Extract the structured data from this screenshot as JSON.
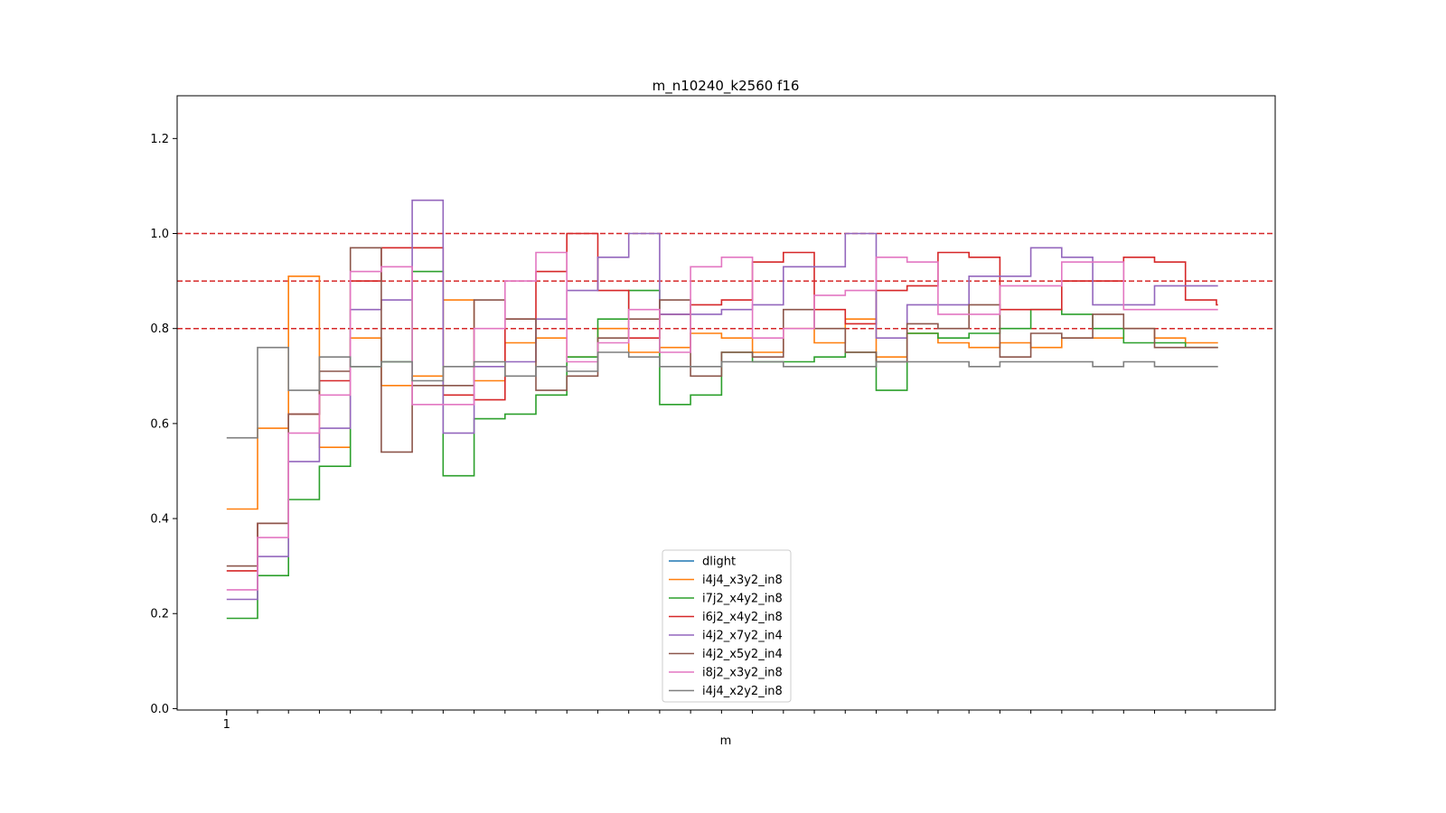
{
  "chart_data": {
    "type": "line",
    "title": "m_n10240_k2560 f16",
    "xlabel": "m",
    "ylabel": "",
    "ylim": [
      -0.003,
      1.29
    ],
    "xlim": [
      -15,
      340
    ],
    "x_tick_labels": [
      {
        "x": 1,
        "label": "1"
      }
    ],
    "x_minor_ticks": [
      1,
      11,
      21,
      31,
      41,
      51,
      61,
      71,
      81,
      91,
      101,
      111,
      121,
      131,
      141,
      151,
      161,
      171,
      181,
      191,
      201,
      211,
      221,
      231,
      241,
      251,
      261,
      271,
      281,
      291,
      301,
      311,
      321
    ],
    "y_ticks": [
      0.0,
      0.2,
      0.4,
      0.6,
      0.8,
      1.0,
      1.2
    ],
    "y_tick_labels": [
      "0.0",
      "0.2",
      "0.4",
      "0.6",
      "0.8",
      "1.0",
      "1.2"
    ],
    "reference_lines": [
      {
        "y": 1.0,
        "color": "#d62728",
        "style": "dashed"
      },
      {
        "y": 0.9,
        "color": "#d62728",
        "style": "dashed"
      },
      {
        "y": 0.8,
        "color": "#d62728",
        "style": "dashed"
      }
    ],
    "legend_position": "lower-center",
    "series": [
      {
        "name": "dlight",
        "color": "#1f77b4",
        "x": [],
        "y": []
      },
      {
        "name": "i4j4_x3y2_in8",
        "color": "#ff7f0e",
        "x": [
          1,
          11,
          21,
          31,
          41,
          51,
          61,
          71,
          81,
          91,
          101,
          111,
          121,
          131,
          141,
          151,
          161,
          171,
          181,
          191,
          201,
          211,
          221,
          231,
          241,
          251,
          261,
          271,
          281,
          291,
          301,
          311,
          321
        ],
        "y": [
          0.42,
          0.59,
          0.91,
          0.55,
          0.78,
          0.68,
          0.7,
          0.86,
          0.69,
          0.77,
          0.78,
          0.74,
          0.8,
          0.75,
          0.76,
          0.79,
          0.78,
          0.75,
          0.8,
          0.77,
          0.82,
          0.74,
          0.79,
          0.77,
          0.76,
          0.77,
          0.76,
          0.78,
          0.78,
          0.8,
          0.78,
          0.77,
          0.77
        ]
      },
      {
        "name": "i7j2_x4y2_in8",
        "color": "#2ca02c",
        "x": [
          1,
          11,
          21,
          31,
          41,
          51,
          61,
          71,
          81,
          91,
          101,
          111,
          121,
          131,
          141,
          151,
          161,
          171,
          181,
          191,
          201,
          211,
          221,
          231,
          241,
          251,
          261,
          271,
          281,
          291,
          301,
          311,
          321
        ],
        "y": [
          0.19,
          0.28,
          0.44,
          0.51,
          0.72,
          0.73,
          0.92,
          0.49,
          0.61,
          0.62,
          0.66,
          0.74,
          0.82,
          0.88,
          0.64,
          0.66,
          0.75,
          0.73,
          0.73,
          0.74,
          0.75,
          0.67,
          0.79,
          0.78,
          0.79,
          0.8,
          0.84,
          0.83,
          0.8,
          0.77,
          0.77,
          0.76,
          0.76
        ]
      },
      {
        "name": "i6j2_x4y2_in8",
        "color": "#d62728",
        "x": [
          1,
          11,
          21,
          31,
          41,
          51,
          61,
          71,
          81,
          91,
          101,
          111,
          121,
          131,
          141,
          151,
          161,
          171,
          181,
          191,
          201,
          211,
          221,
          231,
          241,
          251,
          261,
          271,
          281,
          291,
          301,
          311,
          321
        ],
        "y": [
          0.29,
          0.39,
          0.62,
          0.69,
          0.9,
          0.97,
          0.97,
          0.66,
          0.65,
          0.82,
          0.92,
          1.0,
          0.88,
          0.78,
          0.83,
          0.85,
          0.86,
          0.94,
          0.96,
          0.84,
          0.81,
          0.88,
          0.89,
          0.96,
          0.95,
          0.84,
          0.84,
          0.9,
          0.9,
          0.95,
          0.94,
          0.86,
          0.85
        ]
      },
      {
        "name": "i4j2_x7y2_in4",
        "color": "#9467bd",
        "x": [
          1,
          11,
          21,
          31,
          41,
          51,
          61,
          71,
          81,
          91,
          101,
          111,
          121,
          131,
          141,
          151,
          161,
          171,
          181,
          191,
          201,
          211,
          221,
          231,
          241,
          251,
          261,
          271,
          281,
          291,
          301,
          311,
          321
        ],
        "y": [
          0.23,
          0.32,
          0.52,
          0.59,
          0.84,
          0.86,
          1.07,
          0.58,
          0.72,
          0.73,
          0.82,
          0.88,
          0.95,
          1.0,
          0.83,
          0.83,
          0.84,
          0.85,
          0.93,
          0.93,
          1.0,
          0.78,
          0.85,
          0.85,
          0.91,
          0.91,
          0.97,
          0.95,
          0.85,
          0.85,
          0.89,
          0.89,
          0.89
        ]
      },
      {
        "name": "i4j2_x5y2_in4",
        "color": "#8c564b",
        "x": [
          1,
          11,
          21,
          31,
          41,
          51,
          61,
          71,
          81,
          91,
          101,
          111,
          121,
          131,
          141,
          151,
          161,
          171,
          181,
          191,
          201,
          211,
          221,
          231,
          241,
          251,
          261,
          271,
          281,
          291,
          301,
          311,
          321
        ],
        "y": [
          0.3,
          0.39,
          0.62,
          0.71,
          0.97,
          0.54,
          0.68,
          0.68,
          0.86,
          0.82,
          0.67,
          0.7,
          0.78,
          0.82,
          0.86,
          0.7,
          0.75,
          0.74,
          0.84,
          0.8,
          0.75,
          0.73,
          0.81,
          0.8,
          0.85,
          0.74,
          0.79,
          0.78,
          0.83,
          0.8,
          0.76,
          0.76,
          0.76
        ]
      },
      {
        "name": "i8j2_x3y2_in8",
        "color": "#e377c2",
        "x": [
          1,
          11,
          21,
          31,
          41,
          51,
          61,
          71,
          81,
          91,
          101,
          111,
          121,
          131,
          141,
          151,
          161,
          171,
          181,
          191,
          201,
          211,
          221,
          231,
          241,
          251,
          261,
          271,
          281,
          291,
          301,
          311,
          321
        ],
        "y": [
          0.25,
          0.36,
          0.58,
          0.66,
          0.92,
          0.93,
          0.64,
          0.64,
          0.8,
          0.9,
          0.96,
          0.73,
          0.77,
          0.84,
          0.75,
          0.93,
          0.95,
          0.78,
          0.8,
          0.87,
          0.88,
          0.95,
          0.94,
          0.83,
          0.83,
          0.89,
          0.89,
          0.94,
          0.94,
          0.84,
          0.84,
          0.84,
          0.84
        ]
      },
      {
        "name": "i4j4_x2y2_in8",
        "color": "#7f7f7f",
        "x": [
          1,
          11,
          21,
          31,
          41,
          51,
          61,
          71,
          81,
          91,
          101,
          111,
          121,
          131,
          141,
          151,
          161,
          171,
          181,
          191,
          201,
          211,
          221,
          231,
          241,
          251,
          261,
          271,
          281,
          291,
          301,
          311,
          321
        ],
        "y": [
          0.57,
          0.76,
          0.67,
          0.74,
          0.72,
          0.73,
          0.69,
          0.72,
          0.73,
          0.7,
          0.72,
          0.71,
          0.75,
          0.74,
          0.72,
          0.72,
          0.73,
          0.73,
          0.72,
          0.72,
          0.72,
          0.73,
          0.73,
          0.73,
          0.72,
          0.73,
          0.73,
          0.73,
          0.72,
          0.73,
          0.72,
          0.72,
          0.72
        ]
      }
    ]
  }
}
